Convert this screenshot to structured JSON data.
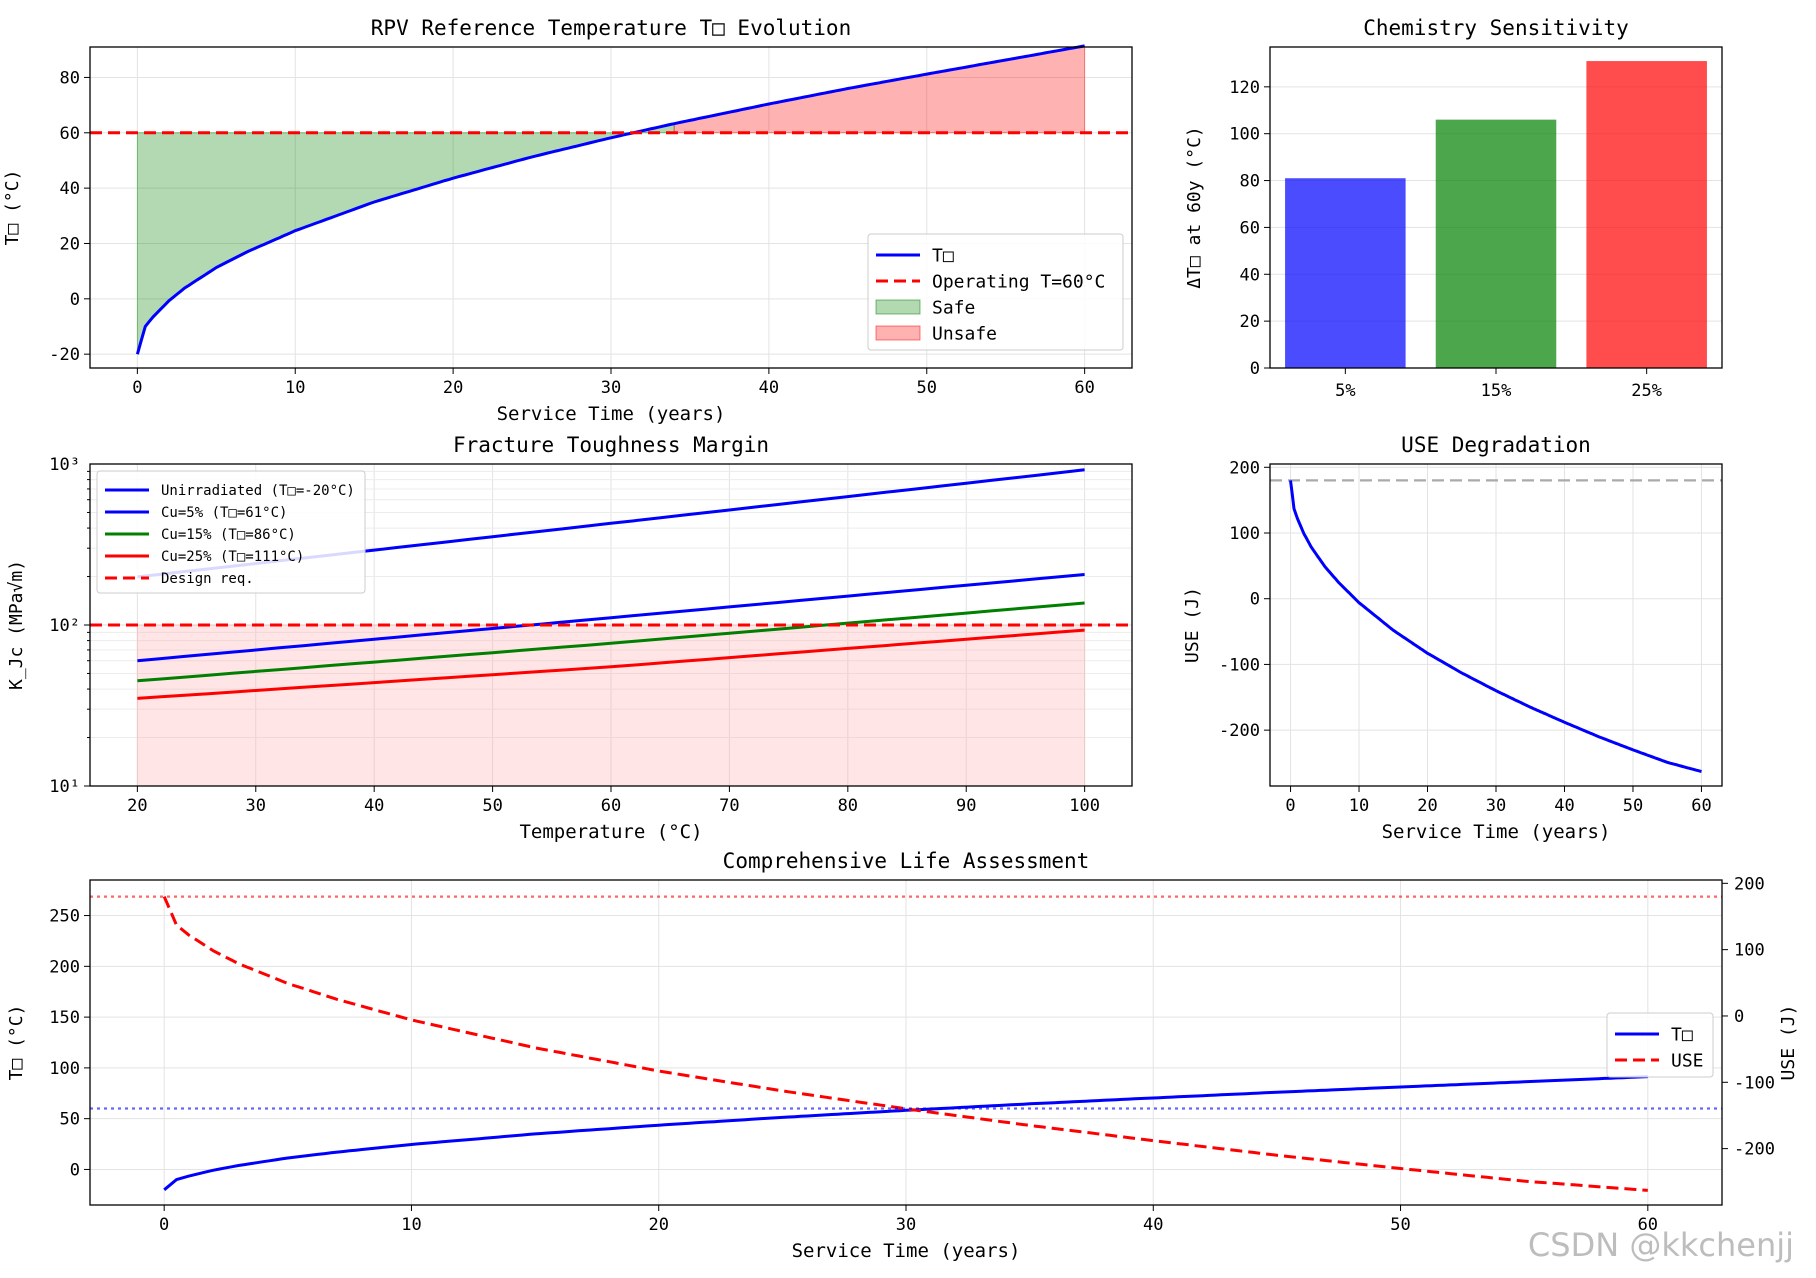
{
  "watermark": "CSDN @kkchenjj",
  "colors": {
    "blue": "#0000ff",
    "red": "#ff0000",
    "green": "#008000"
  },
  "chart_data": [
    {
      "id": "rt",
      "type": "line",
      "title": "RPV Reference Temperature T□ Evolution",
      "xlabel": "Service Time (years)",
      "ylabel": "T□ (°C)",
      "xlim": [
        -3,
        63
      ],
      "ylim": [
        -25,
        91
      ],
      "xticks": [
        0,
        10,
        20,
        30,
        40,
        50,
        60
      ],
      "yticks": [
        -20,
        0,
        20,
        40,
        60,
        80
      ],
      "grid": true,
      "legend_position": "lower-right",
      "series": [
        {
          "name": "T□",
          "style": "solid",
          "color": "#0000ff",
          "x": [
            0,
            0.5,
            1,
            2,
            3,
            5,
            7,
            10,
            15,
            20,
            25,
            30,
            34,
            40,
            45,
            50,
            55,
            60
          ],
          "y": [
            -20,
            -10,
            -6.5,
            -0.7,
            3.9,
            11.3,
            17.1,
            24.6,
            35,
            43.6,
            51.3,
            58.2,
            63.3,
            70.4,
            76,
            81.2,
            86.3,
            91.4
          ]
        },
        {
          "name": "Operating T=60°C",
          "style": "dashed",
          "color": "#ff0000",
          "y_const": 60
        }
      ],
      "fills": [
        {
          "name": "Safe",
          "color": "#008000",
          "opacity": 0.3,
          "x_range": [
            0,
            34
          ]
        },
        {
          "name": "Unsafe",
          "color": "#ff0000",
          "opacity": 0.3,
          "x_range": [
            34,
            60
          ]
        }
      ]
    },
    {
      "id": "chem",
      "type": "bar",
      "title": "Chemistry Sensitivity",
      "ylabel": "ΔT□ at 60y (°C)",
      "categories": [
        "5%",
        "15%",
        "25%"
      ],
      "values": [
        81,
        106,
        131
      ],
      "colors": [
        "#0000ff",
        "#008000",
        "#ff0000"
      ],
      "ylim": [
        0,
        137
      ],
      "yticks": [
        0,
        20,
        40,
        60,
        80,
        100,
        120
      ],
      "grid": true
    },
    {
      "id": "ft",
      "type": "line",
      "title": "Fracture Toughness Margin",
      "xlabel": "Temperature (°C)",
      "ylabel": "K_Jc (MPa√m)",
      "yscale": "log",
      "xlim": [
        16,
        104
      ],
      "ylim": [
        10,
        1000
      ],
      "xticks": [
        20,
        30,
        40,
        50,
        60,
        70,
        80,
        90,
        100
      ],
      "ytick_labels": [
        "10¹",
        "10²",
        "10³"
      ],
      "grid": true,
      "legend_position": "upper-left",
      "series": [
        {
          "name": "Unirradiated (T□=-20°C)",
          "color": "#0000ff",
          "style": "solid",
          "x": [
            20,
            60,
            100
          ],
          "y": [
            199,
            428,
            920
          ]
        },
        {
          "name": "Cu=5% (T□=61°C)",
          "color": "#0000ff",
          "style": "solid",
          "x": [
            20,
            60,
            100
          ],
          "y": [
            60,
            111,
            206
          ]
        },
        {
          "name": "Cu=15% (T□=86°C)",
          "color": "#008000",
          "style": "solid",
          "x": [
            20,
            60,
            100
          ],
          "y": [
            45,
            77,
            137
          ]
        },
        {
          "name": "Cu=25% (T□=111°C)",
          "color": "#ff0000",
          "style": "solid",
          "x": [
            20,
            60,
            100
          ],
          "y": [
            35,
            55,
            93
          ]
        },
        {
          "name": "Design req.",
          "color": "#ff0000",
          "style": "dashed",
          "y_const": 100
        }
      ],
      "fill": {
        "color": "#ff9999",
        "opacity": 0.25,
        "x_range": [
          20,
          100
        ],
        "to": 100
      }
    },
    {
      "id": "use",
      "type": "line",
      "title": "USE Degradation",
      "xlabel": "Service Time (years)",
      "ylabel": "USE (J)",
      "xlim": [
        -3,
        63
      ],
      "ylim": [
        -285,
        205
      ],
      "xticks": [
        0,
        10,
        20,
        30,
        40,
        50,
        60
      ],
      "yticks": [
        -200,
        -100,
        0,
        100,
        200
      ],
      "grid": true,
      "series": [
        {
          "name": "USE",
          "color": "#0000ff",
          "style": "solid",
          "x": [
            0,
            0.5,
            1,
            2,
            3,
            5,
            7,
            10,
            15,
            20,
            25,
            30,
            35,
            40,
            45,
            50,
            55,
            60
          ],
          "y": [
            180,
            137,
            122,
            98,
            79,
            49,
            25,
            -6,
            -48,
            -83,
            -113,
            -140,
            -165,
            -188,
            -210,
            -230,
            -249,
            -263
          ]
        },
        {
          "name": "reference",
          "color": "#aaaaaa",
          "style": "dashed",
          "y_const": 180
        }
      ]
    },
    {
      "id": "life",
      "type": "line",
      "title": "Comprehensive Life Assessment",
      "xlabel": "Service Time (years)",
      "ylabel": "T□ (°C)",
      "ylabel_right": "USE (J)",
      "xlim": [
        -3,
        63
      ],
      "ylim": [
        -35,
        285
      ],
      "ylim_right": [
        -285,
        205
      ],
      "xticks": [
        0,
        10,
        20,
        30,
        40,
        50,
        60
      ],
      "yticks": [
        0,
        50,
        100,
        150,
        200,
        250
      ],
      "yticks_right": [
        -200,
        -100,
        0,
        100,
        200
      ],
      "grid": true,
      "legend_position": "center-right",
      "series": [
        {
          "name": "T□",
          "axis": "left",
          "color": "#0000ff",
          "style": "solid",
          "x": [
            0,
            0.5,
            1,
            2,
            3,
            5,
            7,
            10,
            15,
            20,
            25,
            30,
            35,
            40,
            45,
            50,
            55,
            60
          ],
          "y": [
            -20,
            -10,
            -6.5,
            -0.7,
            3.9,
            11.3,
            17.1,
            24.6,
            35,
            43.6,
            51.3,
            58.2,
            64.6,
            70.4,
            76,
            81.2,
            86.3,
            91.4
          ]
        },
        {
          "name": "USE",
          "axis": "right",
          "color": "#ff0000",
          "style": "dashed",
          "x": [
            0,
            0.5,
            1,
            2,
            3,
            5,
            7,
            10,
            15,
            20,
            25,
            30,
            35,
            40,
            45,
            50,
            55,
            60
          ],
          "y": [
            180,
            137,
            122,
            98,
            79,
            49,
            25,
            -6,
            -48,
            -83,
            -113,
            -140,
            -165,
            -188,
            -210,
            -230,
            -249,
            -263
          ]
        },
        {
          "name": "ref-left",
          "axis": "left",
          "color": "#0000ff",
          "style": "dotted",
          "y_const": 60
        },
        {
          "name": "ref-right",
          "axis": "right",
          "color": "#ff0000",
          "style": "dotted",
          "y_const": 180
        }
      ]
    }
  ]
}
